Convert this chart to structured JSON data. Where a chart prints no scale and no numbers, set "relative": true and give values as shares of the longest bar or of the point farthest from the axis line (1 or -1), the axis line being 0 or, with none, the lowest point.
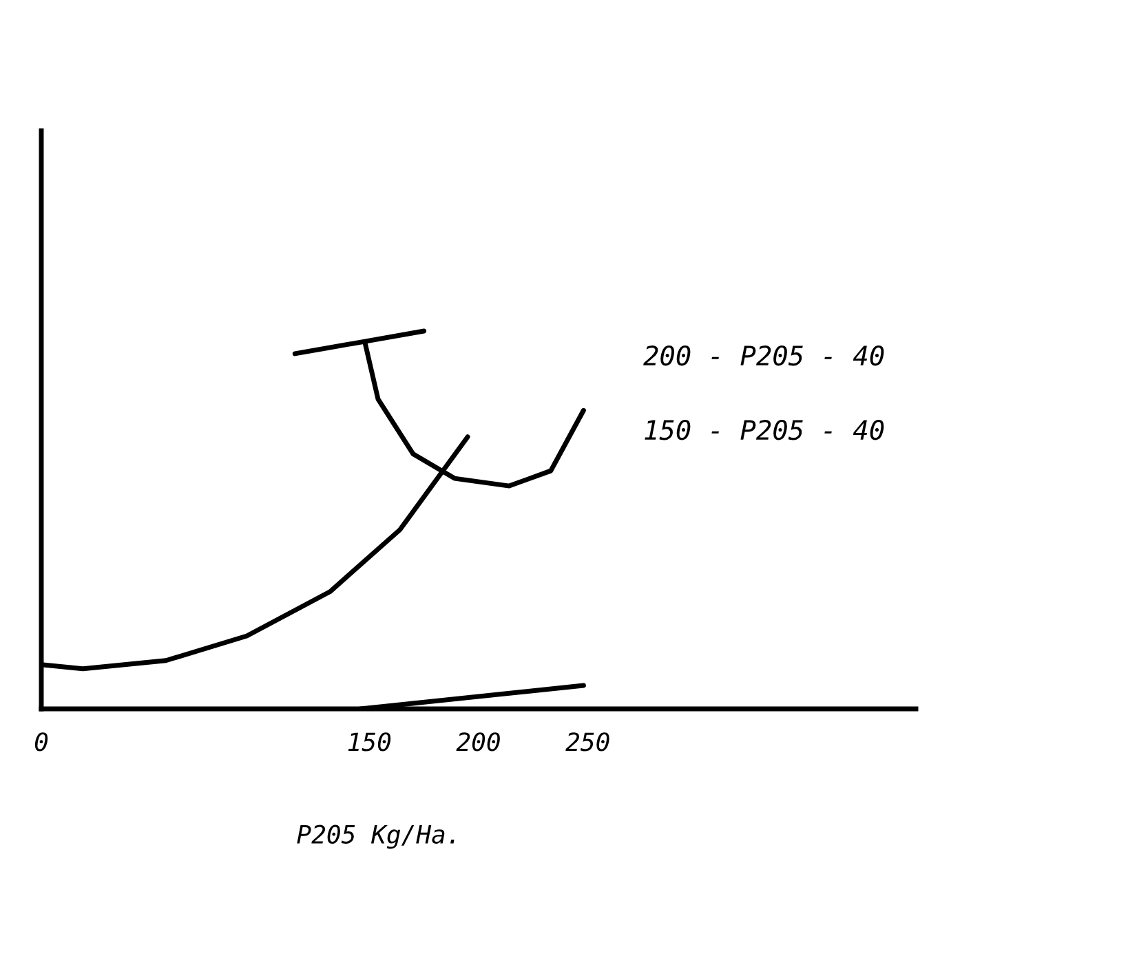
{
  "chart_data": {
    "type": "line",
    "relative": true,
    "xlabel": "P205 Kg/Ha.",
    "xlim": [
      0,
      400
    ],
    "xticks": [
      0,
      150,
      200,
      250
    ],
    "annotations": [
      "200 - P205 - 40",
      "150 - P205 - 40"
    ],
    "series": [
      {
        "color": "#000000",
        "x": [
          116,
          175
        ],
        "values": [
          0.94,
          1.0
        ]
      },
      {
        "color": "#000000",
        "x": [
          148,
          154,
          170,
          189,
          214,
          233,
          248
        ],
        "values": [
          0.97,
          0.82,
          0.675,
          0.61,
          0.59,
          0.63,
          0.79
        ]
      },
      {
        "color": "#000000",
        "x": [
          0,
          19,
          57,
          94,
          132,
          164,
          195
        ],
        "values": [
          0.117,
          0.106,
          0.128,
          0.193,
          0.31,
          0.474,
          0.72
        ]
      },
      {
        "color": "#000000",
        "x": [
          146,
          248
        ],
        "values": [
          0,
          0.062
        ]
      }
    ]
  }
}
